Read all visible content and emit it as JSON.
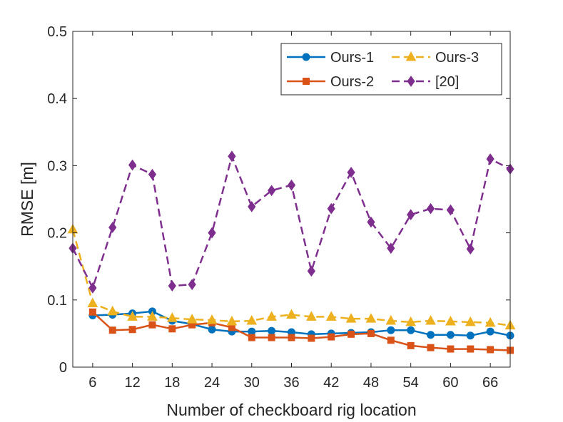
{
  "chart_data": {
    "type": "line",
    "title": "",
    "xlabel": "Number of checkboard rig location",
    "ylabel": "RMSE [m]",
    "xlim": [
      3,
      69
    ],
    "ylim": [
      0,
      0.5
    ],
    "xticks": [
      6,
      12,
      18,
      24,
      30,
      36,
      42,
      48,
      54,
      60,
      66
    ],
    "yticks": [
      0,
      0.1,
      0.2,
      0.3,
      0.4,
      0.5
    ],
    "ytick_labels": [
      "0",
      "0.1",
      "0.2",
      "0.3",
      "0.4",
      "0.5"
    ],
    "grid": false,
    "legend_position": "top-right",
    "x": [
      3,
      6,
      9,
      12,
      15,
      18,
      21,
      24,
      27,
      30,
      33,
      36,
      39,
      42,
      45,
      48,
      51,
      54,
      57,
      60,
      63,
      66,
      69
    ],
    "series": [
      {
        "name": "Ours-1",
        "color": "#0072BD",
        "line_style": "solid",
        "marker": "circle",
        "values": [
          null,
          0.077,
          0.078,
          0.08,
          0.083,
          0.069,
          0.064,
          0.056,
          0.053,
          0.053,
          0.054,
          0.052,
          0.049,
          0.05,
          0.051,
          0.052,
          0.055,
          0.055,
          0.048,
          0.048,
          0.047,
          0.053,
          0.047
        ]
      },
      {
        "name": "Ours-2",
        "color": "#D95319",
        "line_style": "solid",
        "marker": "square",
        "values": [
          null,
          0.082,
          0.055,
          0.056,
          0.063,
          0.057,
          0.063,
          0.066,
          0.059,
          0.044,
          0.044,
          0.044,
          0.043,
          0.045,
          0.049,
          0.05,
          0.04,
          0.032,
          0.029,
          0.027,
          0.027,
          0.026,
          0.025
        ]
      },
      {
        "name": "Ours-3",
        "color": "#EDB120",
        "line_style": "dashed",
        "marker": "triangle",
        "values": [
          0.205,
          0.095,
          0.083,
          0.075,
          0.075,
          0.073,
          0.071,
          0.07,
          0.068,
          0.069,
          0.075,
          0.078,
          0.075,
          0.075,
          0.072,
          0.072,
          0.069,
          0.067,
          0.069,
          0.068,
          0.067,
          0.066,
          0.062
        ]
      },
      {
        "name": "[20]",
        "color": "#7E2F8E",
        "line_style": "dashed",
        "marker": "diamond",
        "values": [
          0.177,
          0.118,
          0.208,
          0.301,
          0.287,
          0.121,
          0.123,
          0.2,
          0.314,
          0.239,
          0.263,
          0.271,
          0.143,
          0.236,
          0.29,
          0.216,
          0.177,
          0.227,
          0.236,
          0.234,
          0.176,
          0.31,
          0.295
        ]
      }
    ]
  }
}
